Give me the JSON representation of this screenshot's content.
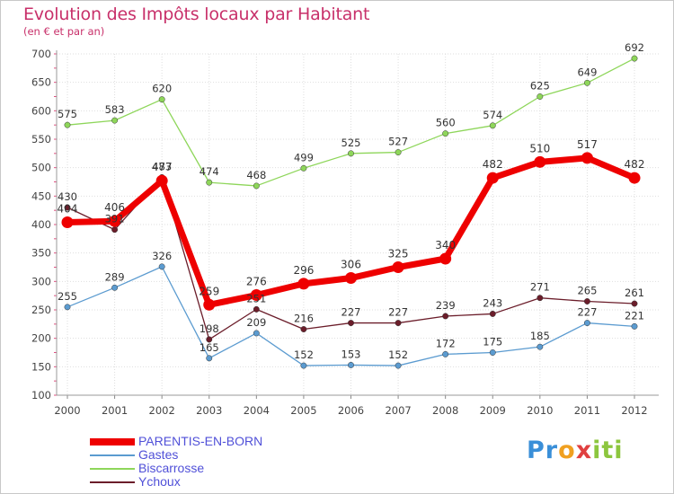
{
  "title": "Evolution des Impôts locaux par Habitant",
  "subtitle": "(en € et par an)",
  "chart_data": {
    "type": "line",
    "title": "Evolution des Impôts locaux par Habitant",
    "subtitle": "(en € et par an)",
    "x": [
      "2000",
      "2001",
      "2002",
      "2003",
      "2004",
      "2005",
      "2006",
      "2007",
      "2008",
      "2009",
      "2010",
      "2011",
      "2012"
    ],
    "ylim": [
      100,
      700
    ],
    "yticks": [
      100,
      150,
      200,
      250,
      300,
      350,
      400,
      450,
      500,
      550,
      600,
      650,
      700
    ],
    "grid": true,
    "legend_position": "bottom-left",
    "series": [
      {
        "name": "Ychoux",
        "color": "#6b1d2a",
        "values": [
          430,
          391,
          483,
          198,
          251,
          216,
          227,
          227,
          239,
          243,
          271,
          265,
          261
        ],
        "labels": [
          "430",
          "391",
          "483",
          "198",
          "251",
          "216",
          "227",
          "227",
          "239",
          "243",
          "271",
          "265",
          "261"
        ]
      },
      {
        "name": "Gastes",
        "color": "#5b9bd0",
        "values": [
          255,
          289,
          326,
          165,
          209,
          152,
          153,
          152,
          172,
          175,
          185,
          227,
          221
        ],
        "labels": [
          "255",
          "289",
          "326",
          "165",
          "209",
          "152",
          "153",
          "152",
          "172",
          "175",
          "185",
          "227",
          "221"
        ]
      },
      {
        "name": "Biscarrosse",
        "color": "#8ed65a",
        "values": [
          575,
          583,
          620,
          474,
          468,
          499,
          525,
          527,
          560,
          574,
          625,
          649,
          692
        ],
        "labels": [
          "575",
          "583",
          "620",
          "474",
          "468",
          "499",
          "525",
          "527",
          "560",
          "574",
          "625",
          "649",
          "692"
        ]
      },
      {
        "name": "PARENTIS-EN-BORN",
        "color": "#ee0000",
        "values": [
          404,
          406,
          477,
          259,
          276,
          296,
          306,
          325,
          340,
          482,
          510,
          517,
          482
        ],
        "labels": [
          "404",
          "406",
          "477",
          "259",
          "276",
          "296",
          "306",
          "325",
          "340",
          "482",
          "510",
          "517",
          "482"
        ]
      }
    ]
  },
  "legend": [
    {
      "label": "PARENTIS-EN-BORN",
      "color": "#ee0000"
    },
    {
      "label": "Gastes",
      "color": "#5b9bd0"
    },
    {
      "label": "Biscarrosse",
      "color": "#8ed65a"
    },
    {
      "label": "Ychoux",
      "color": "#6b1d2a"
    }
  ],
  "logo": {
    "letters": [
      "P",
      "r",
      "o",
      "x",
      "i",
      "t",
      "i"
    ],
    "colors": [
      "#3a8fd8",
      "#3a8fd8",
      "#f0a020",
      "#e04040",
      "#8cc63e",
      "#8cc63e",
      "#8cc63e"
    ]
  }
}
